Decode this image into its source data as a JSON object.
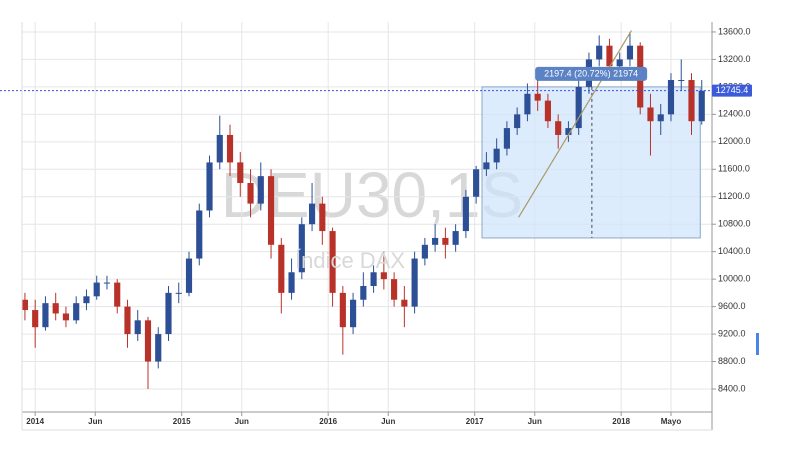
{
  "chart_data": {
    "type": "candlestick",
    "watermark": "DEU30,1S",
    "watermark_subtitle": "Índice DAX",
    "x": [
      2013.93,
      2014.0,
      2014.07,
      2014.14,
      2014.21,
      2014.28,
      2014.35,
      2014.42,
      2014.49,
      2014.56,
      2014.63,
      2014.7,
      2014.77,
      2014.84,
      2014.91,
      2014.98,
      2015.05,
      2015.12,
      2015.19,
      2015.26,
      2015.33,
      2015.4,
      2015.47,
      2015.54,
      2015.61,
      2015.68,
      2015.75,
      2015.82,
      2015.89,
      2015.96,
      2016.03,
      2016.1,
      2016.17,
      2016.24,
      2016.31,
      2016.38,
      2016.45,
      2016.52,
      2016.59,
      2016.66,
      2016.73,
      2016.8,
      2016.87,
      2016.94,
      2017.01,
      2017.08,
      2017.15,
      2017.22,
      2017.29,
      2017.36,
      2017.43,
      2017.5,
      2017.57,
      2017.64,
      2017.71,
      2017.78,
      2017.85,
      2017.92,
      2017.99,
      2018.06,
      2018.13,
      2018.2,
      2018.27,
      2018.34,
      2018.41,
      2018.48,
      2018.55
    ],
    "open": [
      9700,
      9550,
      9300,
      9650,
      9500,
      9400,
      9650,
      9750,
      9950,
      9950,
      9600,
      9200,
      9400,
      8800,
      9200,
      9800,
      9800,
      10300,
      11000,
      11700,
      12100,
      11700,
      11400,
      11100,
      11500,
      10500,
      9800,
      10100,
      10800,
      11100,
      10700,
      9800,
      9300,
      9700,
      9900,
      10100,
      10000,
      9700,
      9600,
      10300,
      10500,
      10600,
      10500,
      10700,
      11200,
      11600,
      11700,
      11900,
      12200,
      12400,
      12700,
      12600,
      12300,
      12100,
      12200,
      12800,
      13200,
      13400,
      13100,
      13200,
      13400,
      12500,
      12300,
      12400,
      12900,
      12900,
      12300
    ],
    "high": [
      9800,
      9700,
      9750,
      9800,
      9600,
      9750,
      9850,
      10050,
      10050,
      10000,
      9700,
      9550,
      9450,
      9300,
      9900,
      9950,
      10400,
      11100,
      11800,
      12380,
      12250,
      11850,
      11600,
      11700,
      11600,
      10600,
      10300,
      10900,
      11400,
      11200,
      10750,
      9900,
      9800,
      10100,
      10200,
      10400,
      10100,
      9900,
      10400,
      10600,
      10800,
      10750,
      10800,
      11300,
      11650,
      11850,
      12050,
      12300,
      12500,
      12850,
      12900,
      12700,
      12400,
      12300,
      12900,
      13300,
      13550,
      13500,
      13300,
      13600,
      13450,
      12700,
      12550,
      13000,
      13200,
      13000,
      12900
    ],
    "low": [
      9400,
      9000,
      9250,
      9400,
      9300,
      9350,
      9550,
      9700,
      9850,
      9500,
      9000,
      9100,
      8400,
      8700,
      9100,
      9650,
      9750,
      10200,
      10900,
      11600,
      11500,
      11200,
      10900,
      11000,
      10300,
      9500,
      9700,
      10000,
      10700,
      10500,
      9600,
      8900,
      9200,
      9600,
      9800,
      9850,
      9600,
      9300,
      9500,
      10200,
      10400,
      10300,
      10400,
      10600,
      11100,
      11500,
      11600,
      11800,
      12100,
      12300,
      12450,
      12200,
      11900,
      12000,
      12100,
      12700,
      13100,
      13000,
      13050,
      13100,
      12400,
      11800,
      12100,
      12300,
      12750,
      12100,
      12250
    ],
    "close": [
      9550,
      9300,
      9650,
      9500,
      9400,
      9650,
      9750,
      9950,
      9950,
      9600,
      9200,
      9400,
      8800,
      9200,
      9800,
      9800,
      10300,
      11000,
      11700,
      12100,
      11700,
      11400,
      11100,
      11500,
      10500,
      9800,
      10100,
      10800,
      11100,
      10700,
      9800,
      9300,
      9700,
      9900,
      10100,
      10000,
      9700,
      9600,
      10300,
      10500,
      10600,
      10500,
      10700,
      11200,
      11600,
      11700,
      11900,
      12200,
      12400,
      12700,
      12600,
      12300,
      12100,
      12200,
      12800,
      13200,
      13400,
      13100,
      13200,
      13400,
      12500,
      12300,
      12400,
      12900,
      12900,
      12300,
      12745
    ],
    "up_color": "#2c4f96",
    "down_color": "#b8322a",
    "xlim": [
      2013.91,
      2018.62
    ],
    "ylim": [
      8065,
      13745
    ],
    "xticks": [
      {
        "value": 2014.0,
        "label": "2014"
      },
      {
        "value": 2014.41,
        "label": "Jun"
      },
      {
        "value": 2015.0,
        "label": "2015"
      },
      {
        "value": 2015.41,
        "label": "Jun"
      },
      {
        "value": 2016.0,
        "label": "2016"
      },
      {
        "value": 2016.41,
        "label": "Jun"
      },
      {
        "value": 2017.0,
        "label": "2017"
      },
      {
        "value": 2017.41,
        "label": "Jun"
      },
      {
        "value": 2018.0,
        "label": "2018"
      },
      {
        "value": 2018.34,
        "label": "Mayo"
      }
    ],
    "yticks": [
      {
        "value": 8400,
        "label": "8400.0"
      },
      {
        "value": 8800,
        "label": "8800.0"
      },
      {
        "value": 9200,
        "label": "9200.0"
      },
      {
        "value": 9600,
        "label": "9600.0"
      },
      {
        "value": 10000,
        "label": "10000.0"
      },
      {
        "value": 10400,
        "label": "10400.0"
      },
      {
        "value": 10800,
        "label": "10800.0"
      },
      {
        "value": 11200,
        "label": "11200.0"
      },
      {
        "value": 11600,
        "label": "11600.0"
      },
      {
        "value": 12000,
        "label": "12000.0"
      },
      {
        "value": 12400,
        "label": "12400.0"
      },
      {
        "value": 12800,
        "label": "12800.0"
      },
      {
        "value": 13200,
        "label": "13200.0"
      },
      {
        "value": 13600,
        "label": "13600.0"
      }
    ],
    "grid": true,
    "last_price": 12745.4,
    "measure": {
      "label": "2197.4 (20.72%) 21974",
      "x": [
        2017.05,
        2018.54
      ],
      "y": [
        10600,
        12800
      ],
      "mid_x": 2017.8
    },
    "trend_line": {
      "x": [
        2017.3,
        2018.07
      ],
      "y": [
        10900,
        13620
      ]
    }
  }
}
